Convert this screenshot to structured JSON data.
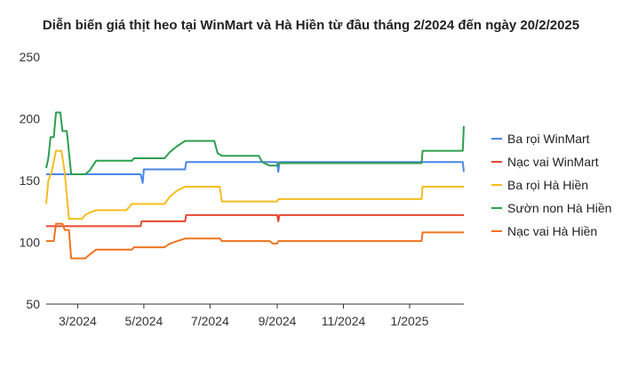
{
  "chart_data": {
    "type": "line",
    "title": "Diễn biến giá thịt heo tại WinMart và Hà Hiền từ đầu tháng 2/2024 đến ngày 20/2/2025",
    "xlabel": "",
    "ylabel": "",
    "ylim": [
      50,
      250
    ],
    "yticks": [
      "250",
      "200",
      "150",
      "100",
      "50"
    ],
    "xticks": [
      {
        "x": "2024-03-01",
        "label": "3/2024"
      },
      {
        "x": "2024-05-01",
        "label": "5/2024"
      },
      {
        "x": "2024-07-01",
        "label": "7/2024"
      },
      {
        "x": "2024-09-01",
        "label": "9/2024"
      },
      {
        "x": "2024-11-01",
        "label": "11/2024"
      },
      {
        "x": "2025-01-01",
        "label": "1/2025"
      }
    ],
    "xlim": [
      "2024-02-01",
      "2025-02-20"
    ],
    "grid": false,
    "legend_position": "right",
    "series": [
      {
        "name": "Ba rọi WinMart",
        "color": "#4a86e8",
        "points": [
          [
            "2024-02-01",
            155
          ],
          [
            "2024-04-28",
            155
          ],
          [
            "2024-04-29",
            152
          ],
          [
            "2024-04-30",
            148
          ],
          [
            "2024-05-01",
            159
          ],
          [
            "2024-06-08",
            159
          ],
          [
            "2024-06-09",
            165
          ],
          [
            "2024-09-01",
            165
          ],
          [
            "2024-09-02",
            157
          ],
          [
            "2024-09-03",
            165
          ],
          [
            "2025-02-19",
            165
          ],
          [
            "2025-02-20",
            157
          ]
        ]
      },
      {
        "name": "Nạc vai WinMart",
        "color": "#e8472e",
        "points": [
          [
            "2024-02-01",
            113
          ],
          [
            "2024-04-28",
            113
          ],
          [
            "2024-04-29",
            117
          ],
          [
            "2024-06-08",
            117
          ],
          [
            "2024-06-09",
            122
          ],
          [
            "2024-09-01",
            122
          ],
          [
            "2024-09-02",
            117
          ],
          [
            "2024-09-03",
            122
          ],
          [
            "2025-02-20",
            122
          ]
        ]
      },
      {
        "name": "Ba rọi Hà Hiền",
        "color": "#f5bd1f",
        "points": [
          [
            "2024-02-01",
            131
          ],
          [
            "2024-02-03",
            150
          ],
          [
            "2024-02-06",
            157
          ],
          [
            "2024-02-10",
            174
          ],
          [
            "2024-02-15",
            174
          ],
          [
            "2024-02-18",
            157
          ],
          [
            "2024-02-22",
            119
          ],
          [
            "2024-03-05",
            119
          ],
          [
            "2024-03-08",
            122
          ],
          [
            "2024-03-12",
            124
          ],
          [
            "2024-03-18",
            126
          ],
          [
            "2024-04-15",
            126
          ],
          [
            "2024-04-20",
            131
          ],
          [
            "2024-05-20",
            131
          ],
          [
            "2024-05-25",
            137
          ],
          [
            "2024-06-01",
            142
          ],
          [
            "2024-06-08",
            145
          ],
          [
            "2024-06-20",
            145
          ],
          [
            "2024-07-10",
            145
          ],
          [
            "2024-07-12",
            133
          ],
          [
            "2024-09-01",
            133
          ],
          [
            "2024-09-02",
            135
          ],
          [
            "2025-01-12",
            135
          ],
          [
            "2025-01-13",
            145
          ],
          [
            "2025-02-20",
            145
          ]
        ]
      },
      {
        "name": "Sườn non Hà Hiền",
        "color": "#2e9e4f",
        "points": [
          [
            "2024-02-01",
            160
          ],
          [
            "2024-02-03",
            168
          ],
          [
            "2024-02-05",
            185
          ],
          [
            "2024-02-08",
            185
          ],
          [
            "2024-02-10",
            205
          ],
          [
            "2024-02-14",
            205
          ],
          [
            "2024-02-16",
            190
          ],
          [
            "2024-02-20",
            190
          ],
          [
            "2024-02-24",
            155
          ],
          [
            "2024-03-08",
            155
          ],
          [
            "2024-03-12",
            158
          ],
          [
            "2024-03-18",
            166
          ],
          [
            "2024-04-20",
            166
          ],
          [
            "2024-04-22",
            168
          ],
          [
            "2024-05-20",
            168
          ],
          [
            "2024-05-25",
            173
          ],
          [
            "2024-06-01",
            178
          ],
          [
            "2024-06-08",
            182
          ],
          [
            "2024-06-20",
            182
          ],
          [
            "2024-07-05",
            182
          ],
          [
            "2024-07-08",
            172
          ],
          [
            "2024-07-12",
            170
          ],
          [
            "2024-08-15",
            170
          ],
          [
            "2024-08-18",
            165
          ],
          [
            "2024-08-25",
            162
          ],
          [
            "2024-09-01",
            162
          ],
          [
            "2024-09-02",
            164
          ],
          [
            "2025-01-12",
            164
          ],
          [
            "2025-01-13",
            174
          ],
          [
            "2025-02-19",
            174
          ],
          [
            "2025-02-20",
            194
          ]
        ]
      },
      {
        "name": "Nạc vai Hà Hiền",
        "color": "#f0731f",
        "points": [
          [
            "2024-02-01",
            101
          ],
          [
            "2024-02-08",
            101
          ],
          [
            "2024-02-10",
            115
          ],
          [
            "2024-02-16",
            115
          ],
          [
            "2024-02-18",
            110
          ],
          [
            "2024-02-22",
            110
          ],
          [
            "2024-02-24",
            87
          ],
          [
            "2024-03-08",
            87
          ],
          [
            "2024-03-12",
            90
          ],
          [
            "2024-03-18",
            94
          ],
          [
            "2024-04-20",
            94
          ],
          [
            "2024-04-22",
            96
          ],
          [
            "2024-05-20",
            96
          ],
          [
            "2024-05-25",
            99
          ],
          [
            "2024-06-01",
            101
          ],
          [
            "2024-06-08",
            103
          ],
          [
            "2024-07-10",
            103
          ],
          [
            "2024-07-12",
            101
          ],
          [
            "2024-08-25",
            101
          ],
          [
            "2024-08-28",
            99
          ],
          [
            "2024-09-01",
            99
          ],
          [
            "2024-09-02",
            101
          ],
          [
            "2025-01-12",
            101
          ],
          [
            "2025-01-13",
            108
          ],
          [
            "2025-02-20",
            108
          ]
        ]
      }
    ]
  }
}
